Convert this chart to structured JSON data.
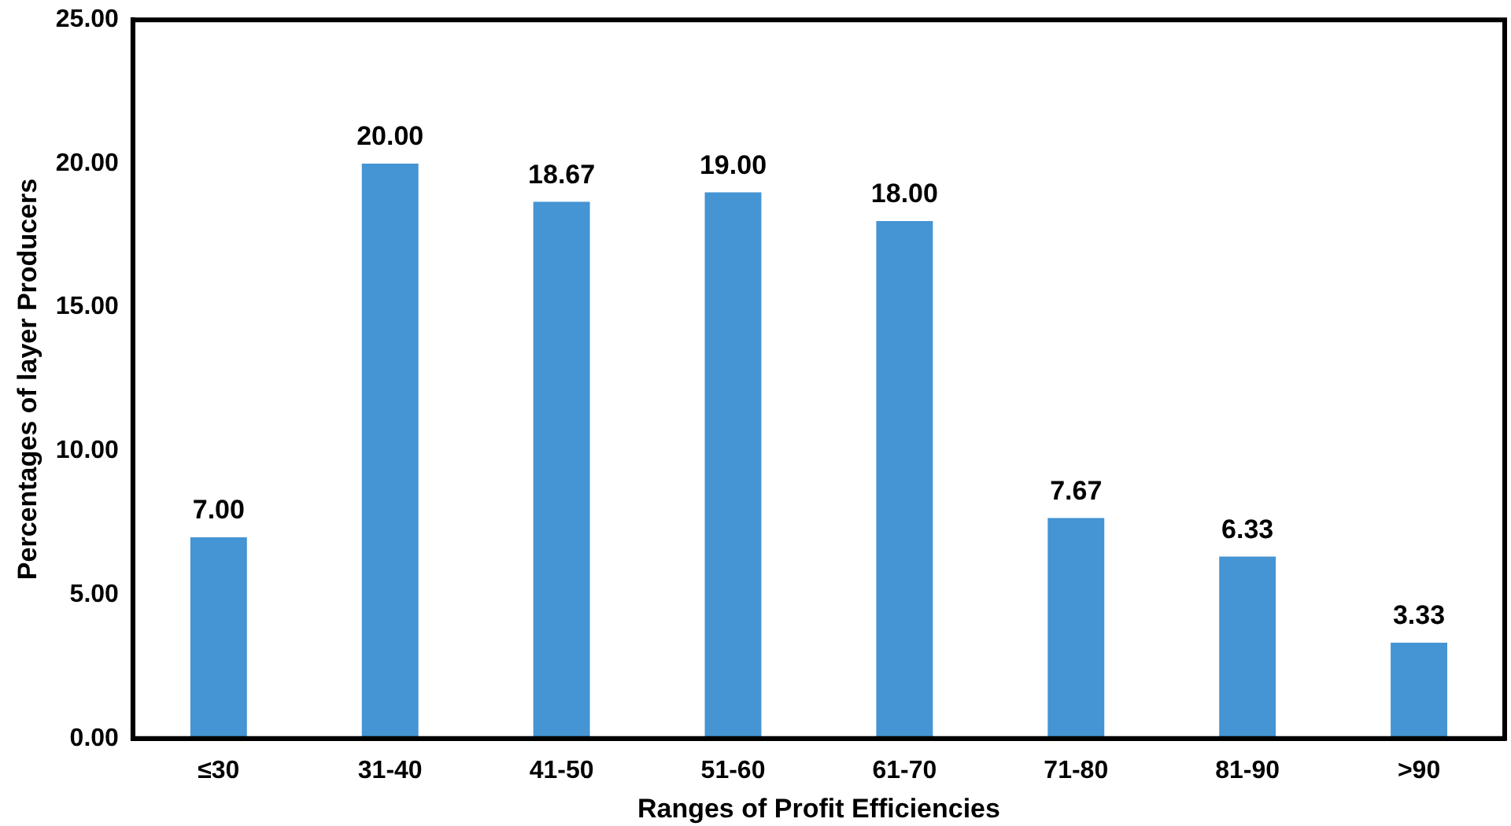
{
  "chart_data": {
    "type": "bar",
    "xlabel": "Ranges of Profit Efficiencies",
    "ylabel": "Percentages of layer Producers",
    "categories": [
      "≤30",
      "31-40",
      "41-50",
      "51-60",
      "61-70",
      "71-80",
      "81-90",
      ">90"
    ],
    "values": [
      7.0,
      20.0,
      18.67,
      19.0,
      18.0,
      7.67,
      6.33,
      3.33
    ],
    "value_labels": [
      "7.00",
      "20.00",
      "18.67",
      "19.00",
      "18.00",
      "7.67",
      "6.33",
      "3.33"
    ],
    "color": "#4594d3",
    "ylim": [
      0,
      25
    ],
    "yticks": [
      {
        "value": 0,
        "label": "0.00"
      },
      {
        "value": 5,
        "label": "5.00"
      },
      {
        "value": 10,
        "label": "10.00"
      },
      {
        "value": 15,
        "label": "15.00"
      },
      {
        "value": 20,
        "label": "20.00"
      },
      {
        "value": 25,
        "label": "25.00"
      }
    ],
    "grid": false,
    "legend": false
  }
}
